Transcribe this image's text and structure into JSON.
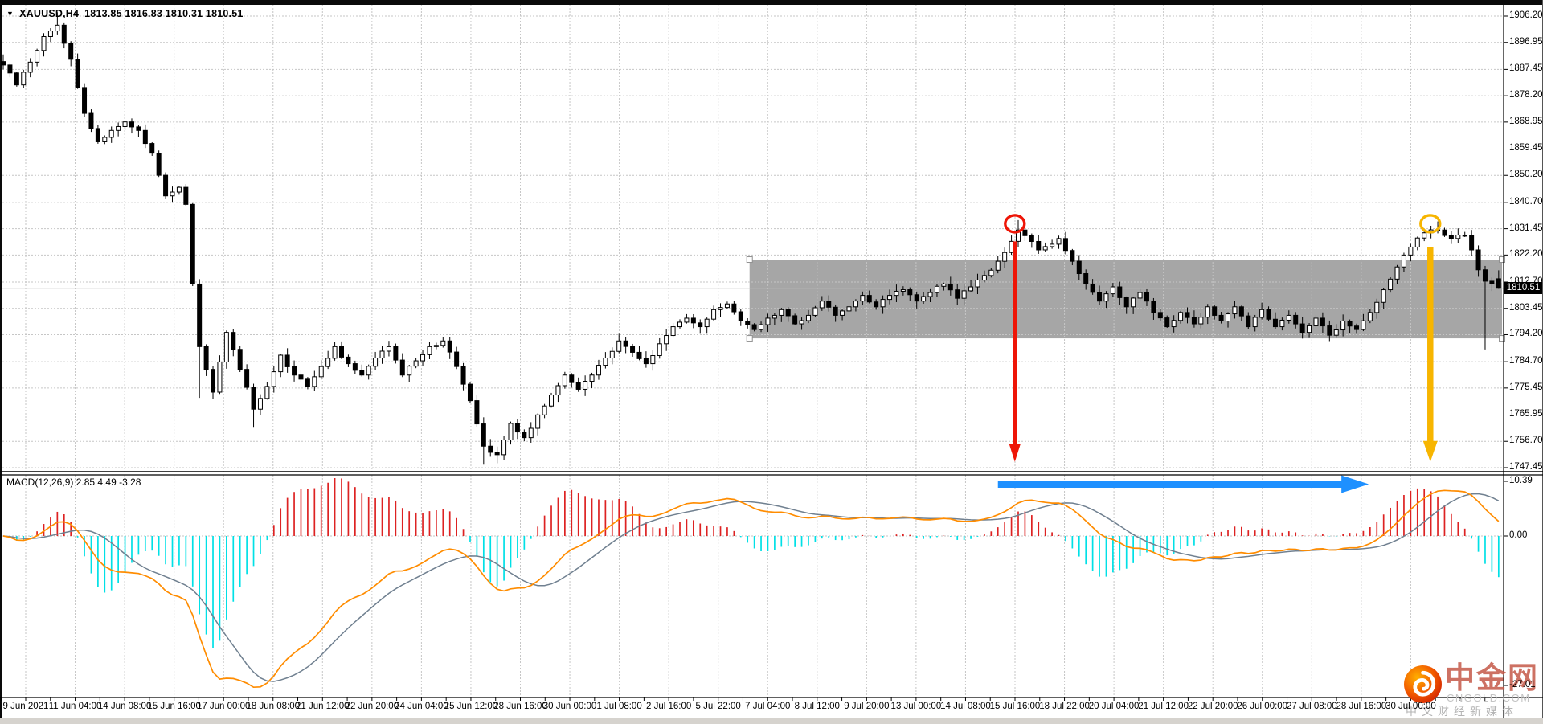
{
  "window": {
    "symbol_bar": {
      "dropdown_icon": "▼",
      "symbol_period": "XAUUSD,H4",
      "ohlc_text": "1813.85 1816.83 1810.31 1810.51"
    }
  },
  "watermark": {
    "name": "中金网",
    "domain_text": "CNGOLD.COM",
    "slogan": "中文财经新媒体"
  },
  "colors": {
    "bull_candle": "#ffffff",
    "bear_candle": "#000000",
    "candle_outline": "#000000",
    "grid": "#c6c6c6",
    "hist_up": "#dd2222",
    "hist_down": "#00e0e6",
    "macd_line": "#ff8c00",
    "signal_line": "#708090",
    "box_fill": "#a6a6a6",
    "red_annotation": "#ee1507",
    "yellow_annotation": "#f7b500",
    "blue_annotation": "#1e90ff",
    "current_price_line": "#c0c0c0"
  },
  "chart_data": {
    "type": "candlestick",
    "symbol": "XAUUSD",
    "timeframe": "H4",
    "quote": {
      "open": 1813.85,
      "high": 1816.83,
      "low": 1810.31,
      "close": 1810.51
    },
    "current_price": 1810.51,
    "price_axis_ticks": [
      1906.2,
      1896.95,
      1887.45,
      1878.2,
      1868.95,
      1859.45,
      1850.2,
      1840.7,
      1831.45,
      1822.2,
      1812.7,
      1803.45,
      1794.2,
      1784.7,
      1775.45,
      1765.95,
      1756.7,
      1747.45
    ],
    "time_axis_labels": [
      "9 Jun 2021",
      "11 Jun 04:00",
      "14 Jun 08:00",
      "15 Jun 16:00",
      "17 Jun 00:00",
      "18 Jun 08:00",
      "21 Jun 12:00",
      "22 Jun 20:00",
      "24 Jun 04:00",
      "25 Jun 12:00",
      "28 Jun 16:00",
      "30 Jun 00:00",
      "1 Jul 08:00",
      "2 Jul 16:00",
      "5 Jul 22:00",
      "7 Jul 04:00",
      "8 Jul 12:00",
      "9 Jul 20:00",
      "13 Jul 00:00",
      "14 Jul 08:00",
      "15 Jul 16:00",
      "18 Jul 22:00",
      "20 Jul 04:00",
      "21 Jul 12:00",
      "22 Jul 20:00",
      "26 Jul 00:00",
      "27 Jul 08:00",
      "28 Jul 16:00",
      "30 Jul 00:00"
    ],
    "candles": {
      "count": 222,
      "close_keyframes": [
        [
          0,
          1889
        ],
        [
          2,
          1882
        ],
        [
          4,
          1890
        ],
        [
          6,
          1899
        ],
        [
          8,
          1903
        ],
        [
          10,
          1891
        ],
        [
          12,
          1872
        ],
        [
          14,
          1862
        ],
        [
          16,
          1866
        ],
        [
          18,
          1869
        ],
        [
          20,
          1866
        ],
        [
          22,
          1858
        ],
        [
          24,
          1843
        ],
        [
          26,
          1846
        ],
        [
          27,
          1840
        ],
        [
          28,
          1812
        ],
        [
          29,
          1790
        ],
        [
          30,
          1782
        ],
        [
          31,
          1774
        ],
        [
          33,
          1795
        ],
        [
          35,
          1782
        ],
        [
          37,
          1768
        ],
        [
          39,
          1776
        ],
        [
          41,
          1787
        ],
        [
          43,
          1780
        ],
        [
          45,
          1776
        ],
        [
          47,
          1783
        ],
        [
          49,
          1790
        ],
        [
          51,
          1784
        ],
        [
          53,
          1780
        ],
        [
          55,
          1786
        ],
        [
          57,
          1790
        ],
        [
          59,
          1780
        ],
        [
          61,
          1785
        ],
        [
          63,
          1790
        ],
        [
          65,
          1792
        ],
        [
          67,
          1783
        ],
        [
          69,
          1771
        ],
        [
          71,
          1755
        ],
        [
          73,
          1752
        ],
        [
          75,
          1763
        ],
        [
          77,
          1758
        ],
        [
          79,
          1766
        ],
        [
          81,
          1773
        ],
        [
          83,
          1780
        ],
        [
          85,
          1775
        ],
        [
          87,
          1780
        ],
        [
          89,
          1786
        ],
        [
          91,
          1792
        ],
        [
          93,
          1788
        ],
        [
          95,
          1784
        ],
        [
          97,
          1791
        ],
        [
          99,
          1797
        ],
        [
          101,
          1800
        ],
        [
          103,
          1797
        ],
        [
          105,
          1803
        ],
        [
          107,
          1805
        ],
        [
          109,
          1799
        ],
        [
          111,
          1796
        ],
        [
          113,
          1800
        ],
        [
          115,
          1803
        ],
        [
          117,
          1798
        ],
        [
          119,
          1801
        ],
        [
          121,
          1806
        ],
        [
          123,
          1801
        ],
        [
          125,
          1804
        ],
        [
          127,
          1808
        ],
        [
          129,
          1804
        ],
        [
          131,
          1808
        ],
        [
          133,
          1810
        ],
        [
          135,
          1806
        ],
        [
          137,
          1809
        ],
        [
          139,
          1812
        ],
        [
          141,
          1807
        ],
        [
          143,
          1811
        ],
        [
          145,
          1815
        ],
        [
          147,
          1820
        ],
        [
          149,
          1827
        ],
        [
          150,
          1831
        ],
        [
          151,
          1829
        ],
        [
          153,
          1824
        ],
        [
          155,
          1826
        ],
        [
          156,
          1828
        ],
        [
          158,
          1820
        ],
        [
          160,
          1812
        ],
        [
          162,
          1806
        ],
        [
          164,
          1811
        ],
        [
          166,
          1804
        ],
        [
          168,
          1809
        ],
        [
          170,
          1802
        ],
        [
          172,
          1797
        ],
        [
          174,
          1802
        ],
        [
          176,
          1798
        ],
        [
          178,
          1804
        ],
        [
          180,
          1799
        ],
        [
          182,
          1804
        ],
        [
          184,
          1797
        ],
        [
          186,
          1803
        ],
        [
          188,
          1797
        ],
        [
          190,
          1801
        ],
        [
          192,
          1795
        ],
        [
          194,
          1800
        ],
        [
          196,
          1794
        ],
        [
          198,
          1799
        ],
        [
          200,
          1796
        ],
        [
          202,
          1802
        ],
        [
          204,
          1810
        ],
        [
          206,
          1818
        ],
        [
          208,
          1825
        ],
        [
          210,
          1830
        ],
        [
          212,
          1831
        ],
        [
          214,
          1828
        ],
        [
          216,
          1829
        ],
        [
          217,
          1824
        ],
        [
          218,
          1817
        ],
        [
          219,
          1813
        ],
        [
          220,
          1812
        ],
        [
          221,
          1810.51
        ]
      ],
      "wick_overrides": {
        "8": {
          "high": 1907.5
        },
        "29": {
          "low": 1772
        },
        "37": {
          "low": 1761.5
        },
        "71": {
          "low": 1748.5
        },
        "73": {
          "low": 1749
        },
        "150": {
          "high": 1834.5
        },
        "212": {
          "high": 1834
        },
        "219": {
          "low": 1789
        },
        "221": {
          "open": 1813.85,
          "high": 1816.83,
          "low": 1810.31,
          "close": 1810.51
        }
      }
    },
    "macd": {
      "label": "MACD(12,26,9) 2.85 4.49 -3.28",
      "fast": 12,
      "slow": 26,
      "signal": 9,
      "values": {
        "macd": 2.85,
        "signal": 4.49,
        "histogram": -3.28
      },
      "axis_ticks": [
        "10.39",
        "0.00",
        "-27.01"
      ]
    },
    "annotations": {
      "consolidation_box": {
        "from_index": 110.3,
        "to_index": 221.5,
        "price_top": 1820.6,
        "price_bottom": 1792.9
      },
      "red_circle": {
        "index": 149.5,
        "price": 1833.2
      },
      "yellow_circle": {
        "index": 210.9,
        "price": 1833.2
      },
      "red_arrow_down": {
        "index": 149.5,
        "price_from": 1827,
        "price_to": 1749.5
      },
      "yellow_arrow_down": {
        "index": 210.9,
        "price_from": 1825,
        "price_to": 1749.5
      },
      "blue_arrow_right": {
        "from_index": 147.0,
        "to_index": 201.8,
        "macd_value": 9.0
      }
    }
  }
}
